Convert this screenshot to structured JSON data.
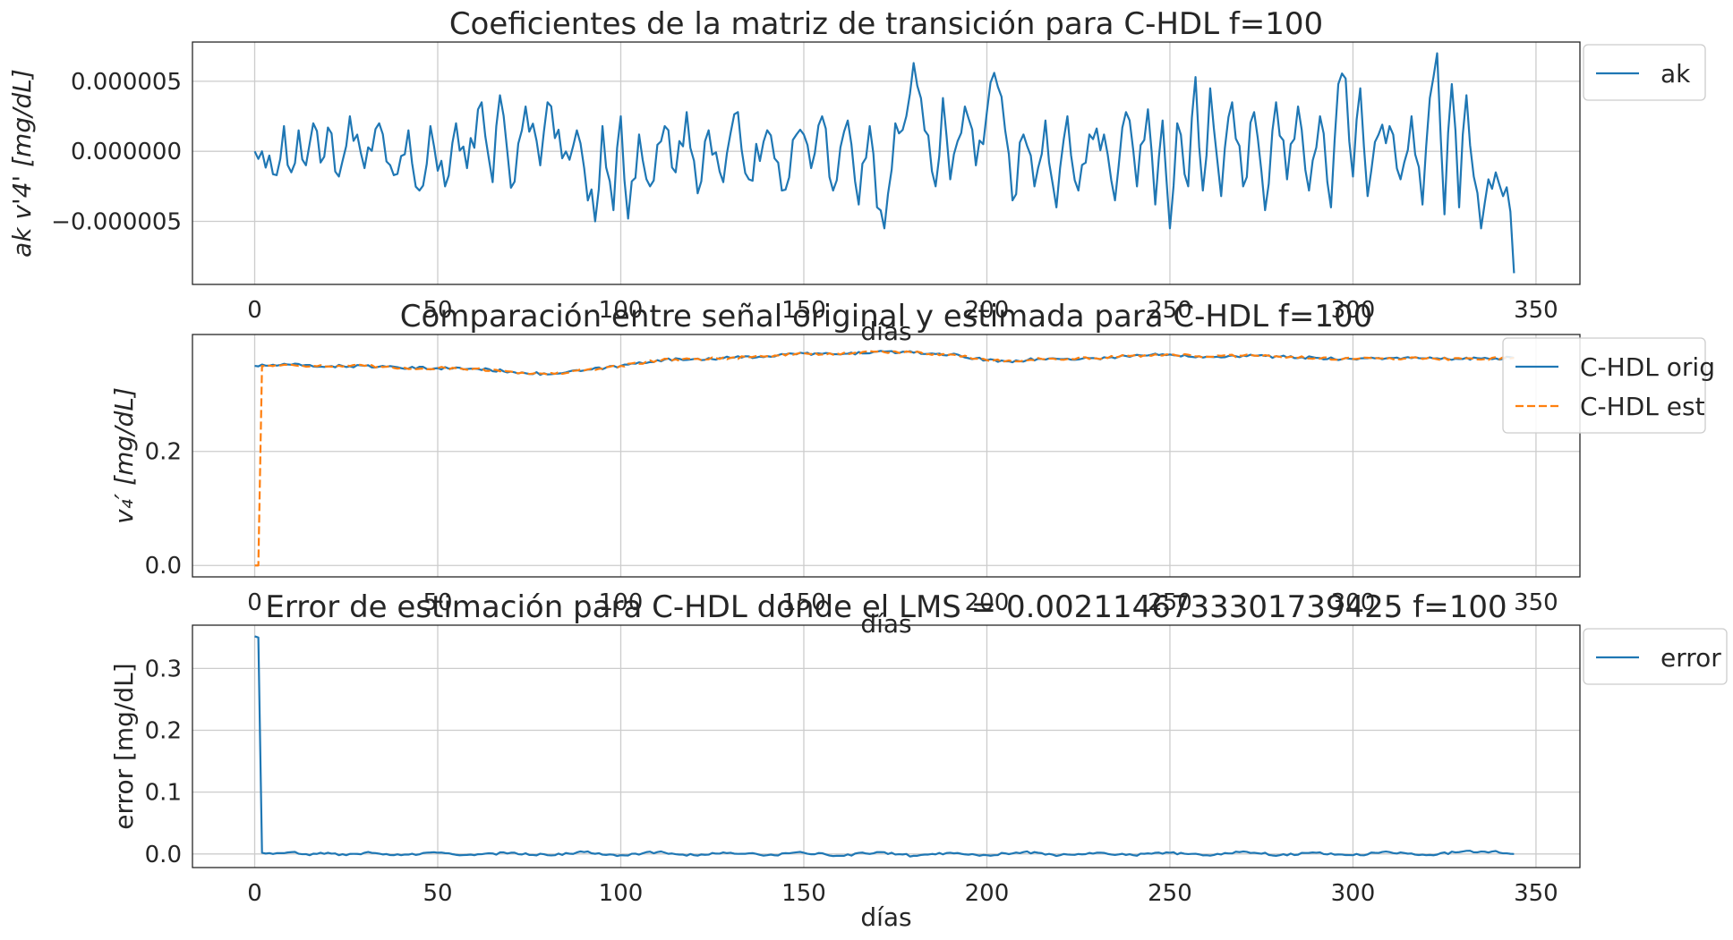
{
  "colors": {
    "series1": "#1f77b4",
    "series2": "#ff7f0e",
    "grid": "#cccccc",
    "text": "#262626"
  },
  "chart_data": [
    {
      "type": "line",
      "title": "Coeficientes de la matriz de transición para C-HDL f=100",
      "xlabel": "días",
      "ylabel": "ak v'4' [mg/dL]",
      "xlim": [
        -17,
        362
      ],
      "ylim": [
        -9.5e-06,
        7.8e-06
      ],
      "xticks": [
        0,
        50,
        100,
        150,
        200,
        250,
        300,
        350
      ],
      "yticks": [
        -5e-06,
        0.0,
        5e-06
      ],
      "ytick_labels": [
        "−0.000005",
        "0.000000",
        "0.000005"
      ],
      "grid": true,
      "legend": "outside-top-right",
      "series": [
        {
          "name": "ak",
          "style": "solid",
          "color": "#1f77b4",
          "x_start": 0,
          "x_step": 1,
          "anchors": [
            [
              0,
              0.0
            ],
            [
              2,
              0.0
            ],
            [
              4,
              -3e-07
            ],
            [
              6,
              -1.7e-06
            ],
            [
              8,
              1.8e-06
            ],
            [
              10,
              -1.5e-06
            ],
            [
              12,
              1.5e-06
            ],
            [
              14,
              -1e-06
            ],
            [
              16,
              2e-06
            ],
            [
              18,
              -8e-07
            ],
            [
              20,
              1.7e-06
            ],
            [
              23,
              -1.8e-06
            ],
            [
              26,
              2.5e-06
            ],
            [
              30,
              -1.2e-06
            ],
            [
              34,
              2e-06
            ],
            [
              38,
              -1.7e-06
            ],
            [
              42,
              1.5e-06
            ],
            [
              45,
              -2.8e-06
            ],
            [
              48,
              1.8e-06
            ],
            [
              52,
              -2.5e-06
            ],
            [
              55,
              2e-06
            ],
            [
              58,
              -1.2e-06
            ],
            [
              62,
              3.5e-06
            ],
            [
              65,
              -2.2e-06
            ],
            [
              67,
              4e-06
            ],
            [
              70,
              -2.6e-06
            ],
            [
              74,
              3.2e-06
            ],
            [
              78,
              -1e-06
            ],
            [
              80,
              3.5e-06
            ],
            [
              84,
              -5e-07
            ],
            [
              88,
              1.5e-06
            ],
            [
              90,
              -1.2e-06
            ],
            [
              93,
              -5e-06
            ],
            [
              95,
              1.8e-06
            ],
            [
              98,
              -4.2e-06
            ],
            [
              100,
              2.5e-06
            ],
            [
              102,
              -4.8e-06
            ],
            [
              105,
              1.2e-06
            ],
            [
              108,
              -2.5e-06
            ],
            [
              112,
              1.8e-06
            ],
            [
              115,
              -1.5e-06
            ],
            [
              118,
              2.8e-06
            ],
            [
              121,
              -3e-06
            ],
            [
              124,
              1.5e-06
            ],
            [
              128,
              -2.2e-06
            ],
            [
              132,
              2.8e-06
            ],
            [
              135,
              -2e-06
            ],
            [
              140,
              1.5e-06
            ],
            [
              144,
              -2.8e-06
            ],
            [
              148,
              1.2e-06
            ],
            [
              152,
              -1.2e-06
            ],
            [
              155,
              2.5e-06
            ],
            [
              158,
              -2.8e-06
            ],
            [
              162,
              2.2e-06
            ],
            [
              165,
              -3.8e-06
            ],
            [
              168,
              1.8e-06
            ],
            [
              170,
              -4e-06
            ],
            [
              172,
              -5.5e-06
            ],
            [
              175,
              2e-06
            ],
            [
              178,
              2.5e-06
            ],
            [
              180,
              6.3e-06
            ],
            [
              183,
              1.5e-06
            ],
            [
              186,
              -2.5e-06
            ],
            [
              188,
              3.8e-06
            ],
            [
              190,
              -2e-06
            ],
            [
              194,
              3.2e-06
            ],
            [
              197,
              -1e-06
            ],
            [
              200,
              2.8e-06
            ],
            [
              202,
              5.6e-06
            ],
            [
              205,
              1.5e-06
            ],
            [
              207,
              -3.5e-06
            ],
            [
              210,
              1.2e-06
            ],
            [
              213,
              -2.5e-06
            ],
            [
              216,
              2.2e-06
            ],
            [
              219,
              -4e-06
            ],
            [
              222,
              2.5e-06
            ],
            [
              225,
              -2.8e-06
            ],
            [
              228,
              1.2e-06
            ],
            [
              232,
              1.2e-06
            ],
            [
              235,
              -3.5e-06
            ],
            [
              238,
              2.8e-06
            ],
            [
              241,
              -2.5e-06
            ],
            [
              244,
              3e-06
            ],
            [
              246,
              -3.8e-06
            ],
            [
              248,
              2.2e-06
            ],
            [
              250,
              -5.5e-06
            ],
            [
              252,
              2e-06
            ],
            [
              255,
              -2.5e-06
            ],
            [
              257,
              5.3e-06
            ],
            [
              259,
              -2.8e-06
            ],
            [
              261,
              4.5e-06
            ],
            [
              264,
              -3.2e-06
            ],
            [
              267,
              3.5e-06
            ],
            [
              270,
              -2.5e-06
            ],
            [
              273,
              2.8e-06
            ],
            [
              276,
              -4.2e-06
            ],
            [
              279,
              3.5e-06
            ],
            [
              282,
              -2e-06
            ],
            [
              285,
              3.2e-06
            ],
            [
              288,
              -2.8e-06
            ],
            [
              291,
              2.5e-06
            ],
            [
              294,
              -4e-06
            ],
            [
              296,
              4.8e-06
            ],
            [
              298,
              5.2e-06
            ],
            [
              300,
              -1.8e-06
            ],
            [
              302,
              4.5e-06
            ],
            [
              304,
              -3.2e-06
            ],
            [
              307,
              1.2e-06
            ],
            [
              310,
              1.8e-06
            ],
            [
              313,
              -2e-06
            ],
            [
              316,
              2.5e-06
            ],
            [
              319,
              -3.8e-06
            ],
            [
              321,
              3.8e-06
            ],
            [
              323,
              7e-06
            ],
            [
              325,
              -4.5e-06
            ],
            [
              327,
              4.8e-06
            ],
            [
              329,
              -4e-06
            ],
            [
              331,
              4e-06
            ],
            [
              333,
              -1.8e-06
            ],
            [
              335,
              -5.5e-06
            ],
            [
              337,
              -2e-06
            ],
            [
              339,
              -1.5e-06
            ],
            [
              341,
              -3.2e-06
            ],
            [
              343,
              -4.3e-06
            ],
            [
              344,
              -8.7e-06
            ]
          ]
        }
      ]
    },
    {
      "type": "line",
      "title": "Comparación entre señal original y estimada para C-HDL f=100",
      "xlabel": "días",
      "ylabel": "v₄′ [mg/dL]",
      "xlim": [
        -17,
        362
      ],
      "ylim": [
        -0.02,
        0.405
      ],
      "xticks": [
        0,
        50,
        100,
        150,
        200,
        250,
        300,
        350
      ],
      "yticks": [
        0.0,
        0.2
      ],
      "ytick_labels": [
        "0.0",
        "0.2"
      ],
      "grid": true,
      "legend": "outside-top-right",
      "series": [
        {
          "name": "C-HDL orig",
          "style": "solid",
          "color": "#1f77b4",
          "x_start": 0,
          "x_step": 1,
          "anchors": [
            [
              0,
              0.35
            ],
            [
              10,
              0.352
            ],
            [
              20,
              0.349
            ],
            [
              30,
              0.35
            ],
            [
              40,
              0.346
            ],
            [
              50,
              0.346
            ],
            [
              60,
              0.345
            ],
            [
              70,
              0.34
            ],
            [
              80,
              0.335
            ],
            [
              90,
              0.342
            ],
            [
              100,
              0.35
            ],
            [
              110,
              0.36
            ],
            [
              120,
              0.362
            ],
            [
              130,
              0.364
            ],
            [
              140,
              0.367
            ],
            [
              150,
              0.372
            ],
            [
              160,
              0.37
            ],
            [
              170,
              0.375
            ],
            [
              180,
              0.373
            ],
            [
              190,
              0.37
            ],
            [
              200,
              0.36
            ],
            [
              205,
              0.358
            ],
            [
              215,
              0.362
            ],
            [
              230,
              0.363
            ],
            [
              240,
              0.368
            ],
            [
              250,
              0.37
            ],
            [
              260,
              0.366
            ],
            [
              270,
              0.368
            ],
            [
              280,
              0.366
            ],
            [
              290,
              0.364
            ],
            [
              300,
              0.362
            ],
            [
              310,
              0.364
            ],
            [
              320,
              0.363
            ],
            [
              330,
              0.362
            ],
            [
              344,
              0.364
            ]
          ]
        },
        {
          "name": "C-HDL est",
          "style": "dashed",
          "color": "#ff7f0e",
          "x_start": 0,
          "x_step": 1,
          "anchors": [
            [
              0,
              0.0
            ],
            [
              1,
              0.0
            ],
            [
              2,
              0.35
            ],
            [
              10,
              0.352
            ],
            [
              20,
              0.349
            ],
            [
              30,
              0.35
            ],
            [
              40,
              0.346
            ],
            [
              50,
              0.346
            ],
            [
              60,
              0.345
            ],
            [
              70,
              0.34
            ],
            [
              80,
              0.335
            ],
            [
              90,
              0.342
            ],
            [
              100,
              0.35
            ],
            [
              110,
              0.36
            ],
            [
              120,
              0.362
            ],
            [
              130,
              0.364
            ],
            [
              140,
              0.367
            ],
            [
              150,
              0.372
            ],
            [
              160,
              0.37
            ],
            [
              170,
              0.375
            ],
            [
              180,
              0.373
            ],
            [
              190,
              0.37
            ],
            [
              200,
              0.36
            ],
            [
              205,
              0.358
            ],
            [
              215,
              0.362
            ],
            [
              230,
              0.363
            ],
            [
              240,
              0.368
            ],
            [
              250,
              0.37
            ],
            [
              260,
              0.366
            ],
            [
              270,
              0.368
            ],
            [
              280,
              0.366
            ],
            [
              290,
              0.364
            ],
            [
              300,
              0.362
            ],
            [
              310,
              0.364
            ],
            [
              320,
              0.363
            ],
            [
              330,
              0.362
            ],
            [
              344,
              0.364
            ]
          ]
        }
      ]
    },
    {
      "type": "line",
      "title": "Error de estimación para C-HDL donde el LMS = 0.0021146733301739425 f=100",
      "xlabel": "días",
      "ylabel": "error  [mg/dL]",
      "xlim": [
        -17,
        362
      ],
      "ylim": [
        -0.022,
        0.37
      ],
      "xticks": [
        0,
        50,
        100,
        150,
        200,
        250,
        300,
        350
      ],
      "yticks": [
        0.0,
        0.1,
        0.2,
        0.3
      ],
      "ytick_labels": [
        "0.0",
        "0.1",
        "0.2",
        "0.3"
      ],
      "grid": true,
      "legend": "outside-top-right",
      "series": [
        {
          "name": "error",
          "style": "solid",
          "color": "#1f77b4",
          "x_start": 0,
          "x_step": 1,
          "anchors": [
            [
              0,
              0.352
            ],
            [
              1,
              0.35
            ],
            [
              2,
              0.002
            ],
            [
              5,
              0.0
            ],
            [
              10,
              0.003
            ],
            [
              15,
              -0.002
            ],
            [
              20,
              0.002
            ],
            [
              25,
              -0.002
            ],
            [
              30,
              0.002
            ],
            [
              40,
              -0.002
            ],
            [
              50,
              0.002
            ],
            [
              60,
              -0.002
            ],
            [
              70,
              0.002
            ],
            [
              80,
              -0.002
            ],
            [
              90,
              0.003
            ],
            [
              100,
              -0.002
            ],
            [
              110,
              0.003
            ],
            [
              120,
              -0.002
            ],
            [
              130,
              0.002
            ],
            [
              140,
              -0.002
            ],
            [
              150,
              0.002
            ],
            [
              160,
              -0.003
            ],
            [
              170,
              0.003
            ],
            [
              180,
              -0.003
            ],
            [
              190,
              0.002
            ],
            [
              200,
              -0.002
            ],
            [
              210,
              0.003
            ],
            [
              220,
              -0.002
            ],
            [
              230,
              0.002
            ],
            [
              240,
              -0.002
            ],
            [
              250,
              0.002
            ],
            [
              260,
              -0.002
            ],
            [
              270,
              0.004
            ],
            [
              280,
              -0.002
            ],
            [
              290,
              0.002
            ],
            [
              300,
              -0.002
            ],
            [
              310,
              0.003
            ],
            [
              320,
              -0.002
            ],
            [
              330,
              0.004
            ],
            [
              338,
              0.004
            ],
            [
              344,
              0.0
            ]
          ]
        }
      ]
    }
  ]
}
